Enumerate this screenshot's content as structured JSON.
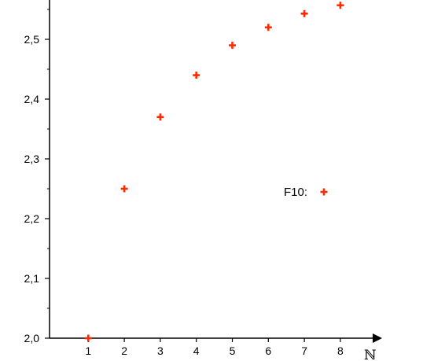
{
  "chart_data": {
    "type": "scatter",
    "title": "",
    "xlabel": "ℕ",
    "ylabel": "",
    "x_ticks": [
      "1",
      "2",
      "3",
      "4",
      "5",
      "6",
      "7",
      "8"
    ],
    "y_ticks": [
      "2,0",
      "2,1",
      "2,2",
      "2,3",
      "2,4",
      "2,5"
    ],
    "xlim": [
      0,
      8.9
    ],
    "ylim": [
      2.0,
      2.56
    ],
    "grid": false,
    "legend": {
      "placement": "inside-right",
      "label": "F10:"
    },
    "series": [
      {
        "name": "F10",
        "marker": "plus",
        "color": "#ff2a00",
        "x": [
          1,
          2,
          3,
          4,
          5,
          6,
          7,
          8
        ],
        "y": [
          2.0,
          2.25,
          2.37,
          2.44,
          2.49,
          2.52,
          2.543,
          2.557
        ]
      }
    ]
  }
}
